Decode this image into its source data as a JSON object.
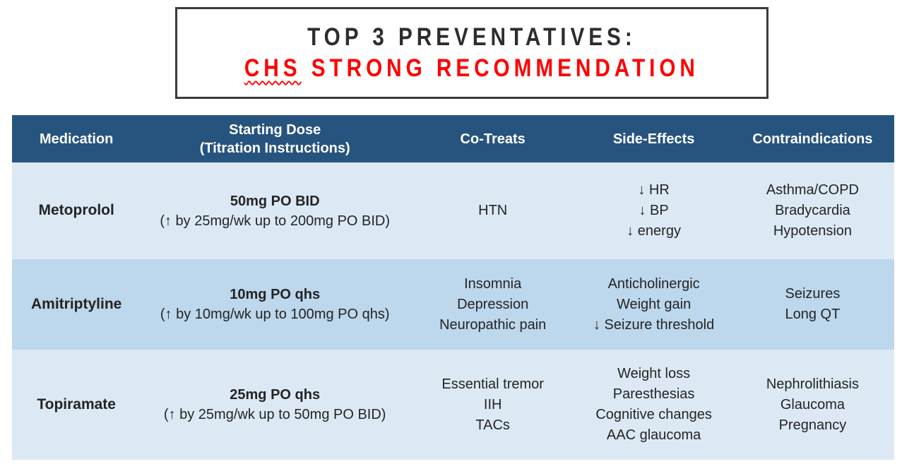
{
  "title": {
    "line1": "TOP 3 PREVENTATIVES:",
    "line2_underlined_word": "CHS",
    "line2_rest": " STRONG RECOMMENDATION"
  },
  "colors": {
    "title_accent": "#FF0000",
    "title_text": "#2D2D2D",
    "box_border": "#3B3B3B",
    "header_bg": "#27547E",
    "header_text": "#FFFFFF",
    "row_light_bg": "#DCE9F5",
    "row_medium_bg": "#BDD7EC",
    "body_text": "#242424"
  },
  "table": {
    "columns": [
      {
        "id": "medication",
        "label": "Medication"
      },
      {
        "id": "starting_dose",
        "label_lines": [
          "Starting Dose",
          "(Titration Instructions)"
        ]
      },
      {
        "id": "co_treats",
        "label": "Co-Treats"
      },
      {
        "id": "side_effects",
        "label": "Side-Effects"
      },
      {
        "id": "contraindications",
        "label": "Contraindications"
      }
    ],
    "rows": [
      {
        "medication": "Metoprolol",
        "dose": "50mg PO BID",
        "titration": "(↑ by 25mg/wk up to 200mg PO BID)",
        "co_treats": [
          "HTN"
        ],
        "side_effects": [
          "↓ HR",
          "↓ BP",
          "↓ energy"
        ],
        "contraindications": [
          "Asthma/COPD",
          "Bradycardia",
          "Hypotension"
        ]
      },
      {
        "medication": "Amitriptyline",
        "dose": "10mg PO qhs",
        "titration": "(↑ by 10mg/wk up to 100mg PO qhs)",
        "co_treats": [
          "Insomnia",
          "Depression",
          "Neuropathic pain"
        ],
        "side_effects": [
          "Anticholinergic",
          "Weight gain",
          "↓ Seizure threshold"
        ],
        "contraindications": [
          "Seizures",
          "Long QT"
        ]
      },
      {
        "medication": "Topiramate",
        "dose": "25mg PO qhs",
        "titration": "(↑ by 25mg/wk up to 50mg PO BID)",
        "co_treats": [
          "Essential tremor",
          "IIH",
          "TACs"
        ],
        "side_effects": [
          "Weight loss",
          "Paresthesias",
          "Cognitive changes",
          "AAC glaucoma"
        ],
        "contraindications": [
          "Nephrolithiasis",
          "Glaucoma",
          "Pregnancy"
        ]
      }
    ]
  }
}
